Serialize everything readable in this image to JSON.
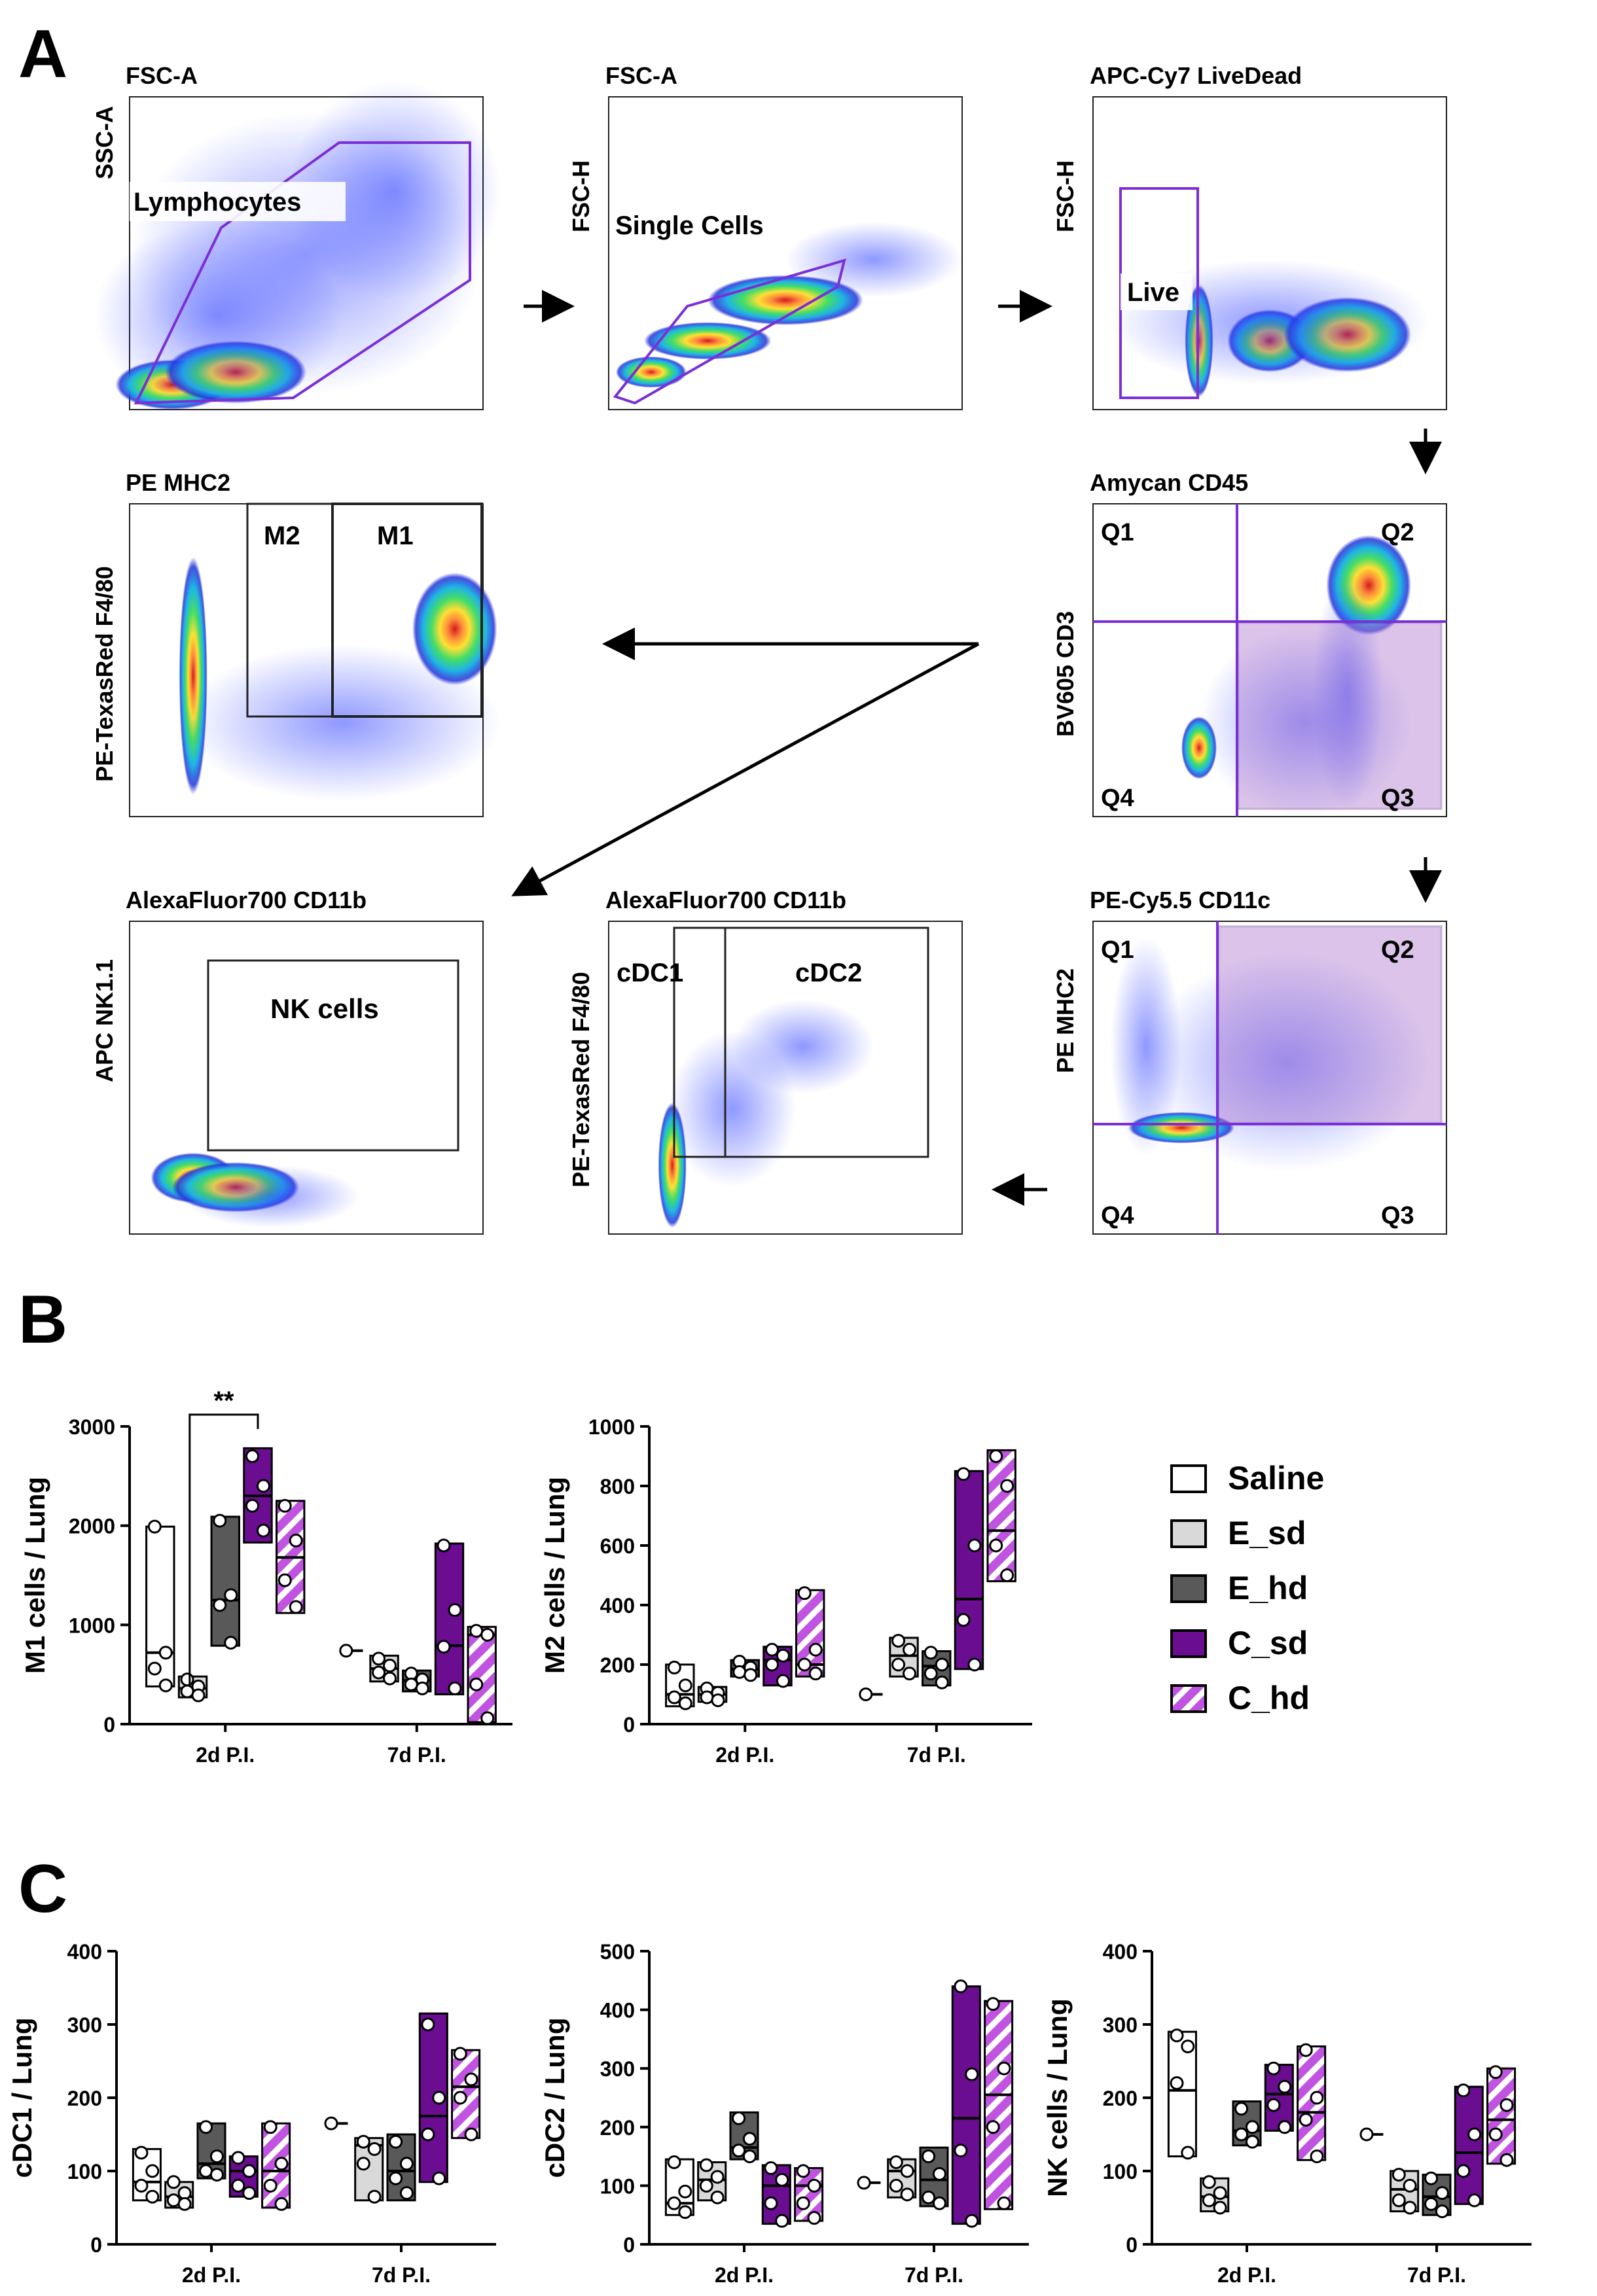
{
  "panels": {
    "a": "A",
    "b": "B",
    "c": "C"
  },
  "flow_panels": [
    {
      "id": "p1",
      "title": "FSC-A",
      "ylabel": "SSC-A",
      "pattern": "lymph",
      "gates": [
        {
          "label": "Lymphocytes"
        }
      ],
      "quads": []
    },
    {
      "id": "p2",
      "title": "FSC-A",
      "ylabel": "FSC-H",
      "pattern": "singlet",
      "gates": [
        {
          "label": "Single Cells"
        }
      ],
      "quads": []
    },
    {
      "id": "p3",
      "title": "APC-Cy7 LiveDead",
      "ylabel": "FSC-H",
      "pattern": "live",
      "gates": [
        {
          "label": "Live"
        }
      ],
      "quads": []
    },
    {
      "id": "p4",
      "title": "Amycan CD45",
      "ylabel": "BV605 CD3",
      "pattern": "cd45",
      "gates": [],
      "quads": [
        "Q1",
        "Q2",
        "Q3",
        "Q4"
      ]
    },
    {
      "id": "p5",
      "title": "PE MHC2",
      "ylabel": "PE-TexasRed F4/80",
      "pattern": "mhc",
      "gates": [
        {
          "label": "M2"
        },
        {
          "label": "M1"
        }
      ],
      "quads": []
    },
    {
      "id": "p6",
      "title": "PE-Cy5.5 CD11c",
      "ylabel": "PE MHC2",
      "pattern": "cd11c",
      "gates": [],
      "quads": [
        "Q1",
        "Q2",
        "Q3",
        "Q4"
      ]
    },
    {
      "id": "p7",
      "title": "AlexaFluor700 CD11b",
      "ylabel": "PE-TexasRed F4/80",
      "pattern": "dc",
      "gates": [
        {
          "label": "cDC1"
        },
        {
          "label": "cDC2"
        }
      ],
      "quads": []
    },
    {
      "id": "p8",
      "title": "AlexaFluor700 CD11b",
      "ylabel": "APC NK1.1",
      "pattern": "nk",
      "gates": [
        {
          "label": "NK cells"
        }
      ],
      "quads": []
    }
  ],
  "legend": [
    {
      "label": "Saline",
      "fill": "#ffffff",
      "hatch": false
    },
    {
      "label": "E_sd",
      "fill": "#d9d9d9",
      "hatch": false
    },
    {
      "label": "E_hd",
      "fill": "#595959",
      "hatch": false
    },
    {
      "label": "C_sd",
      "fill": "#6a0d91",
      "hatch": false
    },
    {
      "label": "C_hd",
      "fill": "#c054e0",
      "hatch": true
    }
  ],
  "chart_data": [
    {
      "id": "m1",
      "type": "floating-bar",
      "ylabel": "M1 cells / Lung",
      "ylim": [
        0,
        3000
      ],
      "yticks": [
        0,
        1000,
        2000,
        3000
      ],
      "categories": [
        "2d P.I.",
        "7d P.I."
      ],
      "annotation": {
        "text": "**",
        "from_group": "Saline",
        "to_group": "C_sd",
        "category": "2d P.I."
      },
      "groups": [
        {
          "name": "Saline",
          "boxes": [
            {
              "min": 380,
              "max": 1990,
              "median": 720,
              "points": [
                1990,
                720,
                560,
                390
              ]
            },
            {
              "min": 740,
              "max": 740,
              "median": 740,
              "points": [
                740
              ]
            }
          ]
        },
        {
          "name": "E_sd",
          "boxes": [
            {
              "min": 270,
              "max": 480,
              "median": 360,
              "points": [
                450,
                380,
                330,
                290
              ]
            },
            {
              "min": 430,
              "max": 690,
              "median": 560,
              "points": [
                660,
                590,
                520,
                460
              ]
            }
          ]
        },
        {
          "name": "E_hd",
          "boxes": [
            {
              "min": 790,
              "max": 2090,
              "median": 1250,
              "points": [
                2050,
                1300,
                1200,
                820
              ]
            },
            {
              "min": 330,
              "max": 540,
              "median": 440,
              "points": [
                510,
                450,
                400,
                360
              ]
            }
          ]
        },
        {
          "name": "C_sd",
          "boxes": [
            {
              "min": 1830,
              "max": 2780,
              "median": 2300,
              "points": [
                2700,
                2400,
                2200,
                1950
              ]
            },
            {
              "min": 300,
              "max": 1820,
              "median": 790,
              "points": [
                1800,
                1150,
                780,
                360
              ]
            }
          ]
        },
        {
          "name": "C_hd",
          "boxes": [
            {
              "min": 1120,
              "max": 2250,
              "median": 1680,
              "points": [
                2200,
                1850,
                1450,
                1180
              ]
            },
            {
              "min": 20,
              "max": 980,
              "median": 900,
              "points": [
                940,
                900,
                400,
                60
              ]
            }
          ]
        }
      ]
    },
    {
      "id": "m2",
      "type": "floating-bar",
      "ylabel": "M2 cells / Lung",
      "ylim": [
        0,
        1000
      ],
      "yticks": [
        0,
        200,
        400,
        600,
        800,
        1000
      ],
      "categories": [
        "2d P.I.",
        "7d P.I."
      ],
      "groups": [
        {
          "name": "Saline",
          "boxes": [
            {
              "min": 60,
              "max": 200,
              "median": 100,
              "points": [
                190,
                130,
                90,
                70
              ]
            },
            {
              "min": 100,
              "max": 100,
              "median": 100,
              "points": [
                100
              ]
            }
          ]
        },
        {
          "name": "E_sd",
          "boxes": [
            {
              "min": 75,
              "max": 125,
              "median": 100,
              "points": [
                120,
                105,
                90,
                80
              ]
            },
            {
              "min": 160,
              "max": 290,
              "median": 230,
              "points": [
                280,
                250,
                200,
                170
              ]
            }
          ]
        },
        {
          "name": "E_hd",
          "boxes": [
            {
              "min": 160,
              "max": 215,
              "median": 185,
              "points": [
                210,
                190,
                175,
                165
              ]
            },
            {
              "min": 130,
              "max": 245,
              "median": 195,
              "points": [
                240,
                200,
                170,
                140
              ]
            }
          ]
        },
        {
          "name": "C_sd",
          "boxes": [
            {
              "min": 130,
              "max": 260,
              "median": 215,
              "points": [
                250,
                230,
                200,
                145
              ]
            },
            {
              "min": 185,
              "max": 850,
              "median": 420,
              "points": [
                840,
                600,
                350,
                200
              ]
            }
          ]
        },
        {
          "name": "C_hd",
          "boxes": [
            {
              "min": 160,
              "max": 450,
              "median": 200,
              "points": [
                440,
                250,
                200,
                170
              ]
            },
            {
              "min": 480,
              "max": 920,
              "median": 650,
              "points": [
                900,
                800,
                600,
                500
              ]
            }
          ]
        }
      ]
    },
    {
      "id": "cdc1",
      "type": "floating-bar",
      "ylabel": "cDC1 / Lung",
      "ylim": [
        0,
        400
      ],
      "yticks": [
        0,
        100,
        200,
        300,
        400
      ],
      "categories": [
        "2d P.I.",
        "7d P.I."
      ],
      "groups": [
        {
          "name": "Saline",
          "boxes": [
            {
              "min": 60,
              "max": 130,
              "median": 85,
              "points": [
                125,
                100,
                80,
                65
              ]
            },
            {
              "min": 165,
              "max": 165,
              "median": 165,
              "points": [
                165
              ]
            }
          ]
        },
        {
          "name": "E_sd",
          "boxes": [
            {
              "min": 50,
              "max": 85,
              "median": 65,
              "points": [
                85,
                70,
                60,
                55
              ]
            },
            {
              "min": 60,
              "max": 145,
              "median": 135,
              "points": [
                140,
                130,
                110,
                65
              ]
            }
          ]
        },
        {
          "name": "E_hd",
          "boxes": [
            {
              "min": 90,
              "max": 165,
              "median": 110,
              "points": [
                160,
                120,
                100,
                95
              ]
            },
            {
              "min": 60,
              "max": 150,
              "median": 100,
              "points": [
                140,
                110,
                90,
                70
              ]
            }
          ]
        },
        {
          "name": "C_sd",
          "boxes": [
            {
              "min": 65,
              "max": 120,
              "median": 100,
              "points": [
                118,
                100,
                80,
                70
              ]
            },
            {
              "min": 85,
              "max": 315,
              "median": 175,
              "points": [
                300,
                200,
                150,
                90
              ]
            }
          ]
        },
        {
          "name": "C_hd",
          "boxes": [
            {
              "min": 50,
              "max": 165,
              "median": 100,
              "points": [
                160,
                110,
                80,
                55
              ]
            },
            {
              "min": 145,
              "max": 265,
              "median": 215,
              "points": [
                260,
                225,
                200,
                150
              ]
            }
          ]
        }
      ]
    },
    {
      "id": "cdc2",
      "type": "floating-bar",
      "ylabel": "cDC2 / Lung",
      "ylim": [
        0,
        500
      ],
      "yticks": [
        0,
        100,
        200,
        300,
        400,
        500
      ],
      "categories": [
        "2d P.I.",
        "7d P.I."
      ],
      "groups": [
        {
          "name": "Saline",
          "boxes": [
            {
              "min": 50,
              "max": 145,
              "median": 70,
              "points": [
                140,
                90,
                70,
                55
              ]
            },
            {
              "min": 105,
              "max": 105,
              "median": 105,
              "points": [
                105
              ]
            }
          ]
        },
        {
          "name": "E_sd",
          "boxes": [
            {
              "min": 75,
              "max": 140,
              "median": 110,
              "points": [
                135,
                115,
                100,
                80
              ]
            },
            {
              "min": 80,
              "max": 145,
              "median": 125,
              "points": [
                140,
                125,
                100,
                85
              ]
            }
          ]
        },
        {
          "name": "E_hd",
          "boxes": [
            {
              "min": 145,
              "max": 225,
              "median": 165,
              "points": [
                215,
                180,
                160,
                150
              ]
            },
            {
              "min": 65,
              "max": 165,
              "median": 110,
              "points": [
                150,
                120,
                80,
                70
              ]
            }
          ]
        },
        {
          "name": "C_sd",
          "boxes": [
            {
              "min": 35,
              "max": 135,
              "median": 100,
              "points": [
                130,
                110,
                70,
                40
              ]
            },
            {
              "min": 35,
              "max": 440,
              "median": 215,
              "points": [
                440,
                290,
                160,
                40
              ]
            }
          ]
        },
        {
          "name": "C_hd",
          "boxes": [
            {
              "min": 40,
              "max": 130,
              "median": 100,
              "points": [
                125,
                100,
                70,
                45
              ]
            },
            {
              "min": 60,
              "max": 415,
              "median": 255,
              "points": [
                410,
                300,
                200,
                70
              ]
            }
          ]
        }
      ]
    },
    {
      "id": "nk",
      "type": "floating-bar",
      "ylabel": "NK cells / Lung",
      "ylim": [
        0,
        400
      ],
      "yticks": [
        0,
        100,
        200,
        300,
        400
      ],
      "categories": [
        "2d P.I.",
        "7d P.I."
      ],
      "groups": [
        {
          "name": "Saline",
          "boxes": [
            {
              "min": 120,
              "max": 290,
              "median": 210,
              "points": [
                285,
                270,
                220,
                125
              ]
            },
            {
              "min": 150,
              "max": 150,
              "median": 150,
              "points": [
                150
              ]
            }
          ]
        },
        {
          "name": "E_sd",
          "boxes": [
            {
              "min": 45,
              "max": 90,
              "median": 65,
              "points": [
                85,
                70,
                60,
                50
              ]
            },
            {
              "min": 45,
              "max": 100,
              "median": 75,
              "points": [
                95,
                80,
                60,
                50
              ]
            }
          ]
        },
        {
          "name": "E_hd",
          "boxes": [
            {
              "min": 135,
              "max": 195,
              "median": 155,
              "points": [
                185,
                160,
                150,
                140
              ]
            },
            {
              "min": 40,
              "max": 95,
              "median": 65,
              "points": [
                90,
                70,
                55,
                45
              ]
            }
          ]
        },
        {
          "name": "C_sd",
          "boxes": [
            {
              "min": 155,
              "max": 245,
              "median": 205,
              "points": [
                240,
                215,
                190,
                160
              ]
            },
            {
              "min": 55,
              "max": 215,
              "median": 125,
              "points": [
                210,
                150,
                100,
                60
              ]
            }
          ]
        },
        {
          "name": "C_hd",
          "boxes": [
            {
              "min": 115,
              "max": 270,
              "median": 180,
              "points": [
                265,
                200,
                170,
                120
              ]
            },
            {
              "min": 110,
              "max": 240,
              "median": 170,
              "points": [
                235,
                190,
                150,
                115
              ]
            }
          ]
        }
      ]
    }
  ]
}
